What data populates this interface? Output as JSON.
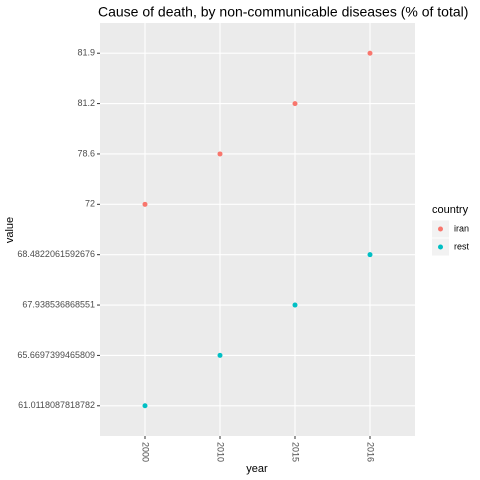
{
  "chart_data": {
    "type": "scatter",
    "title": "Cause of death, by non-communicable diseases (% of total)",
    "xlabel": "year",
    "ylabel": "value",
    "categories": [
      "2000",
      "2010",
      "2015",
      "2016"
    ],
    "ycategories": [
      61.0118087818782,
      65.6697399465809,
      67.938536868551,
      68.4822061592676,
      72,
      78.6,
      81.2,
      81.9
    ],
    "legend_title": "country",
    "legend": "right",
    "grid": true,
    "series": [
      {
        "name": "iran",
        "color": "#F8766D",
        "values": [
          72,
          78.6,
          81.2,
          81.9
        ]
      },
      {
        "name": "rest",
        "color": "#00BFC4",
        "values": [
          61.0118087818782,
          65.6697399465809,
          67.938536868551,
          68.4822061592676
        ]
      }
    ]
  }
}
